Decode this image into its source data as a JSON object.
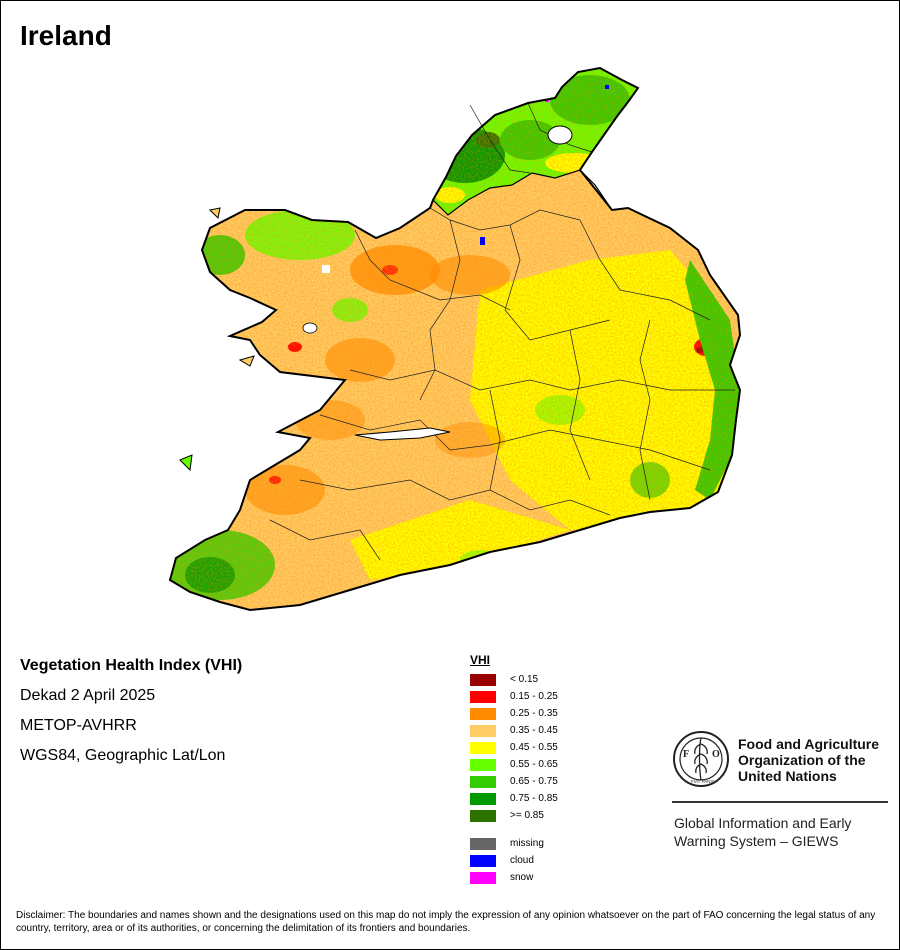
{
  "map": {
    "title": "Ireland",
    "country": "Ireland"
  },
  "info": {
    "product": "Vegetation Health Index (VHI)",
    "period": "Dekad 2 April 2025",
    "sensor": "METOP-AVHRR",
    "projection": "WGS84, Geographic Lat/Lon"
  },
  "legend": {
    "title": "VHI",
    "classes": [
      {
        "label": "< 0.15",
        "color": "#990000"
      },
      {
        "label": "0.15 - 0.25",
        "color": "#ff0000"
      },
      {
        "label": "0.25 - 0.35",
        "color": "#ff8c00"
      },
      {
        "label": "0.35 - 0.45",
        "color": "#ffcc66"
      },
      {
        "label": "0.45 - 0.55",
        "color": "#ffff00"
      },
      {
        "label": "0.55 - 0.65",
        "color": "#66ff00"
      },
      {
        "label": "0.65 - 0.75",
        "color": "#33cc00"
      },
      {
        "label": "0.75 - 0.85",
        "color": "#009900"
      },
      {
        "label": ">= 0.85",
        "color": "#2d7300"
      }
    ],
    "other": [
      {
        "label": "missing",
        "color": "#666666"
      },
      {
        "label": "cloud",
        "color": "#0000ff"
      },
      {
        "label": "snow",
        "color": "#ff00ff"
      }
    ]
  },
  "org": {
    "emblem_letters": "FAO",
    "emblem_motto": "FIAT PANIS",
    "name_line1": "Food and Agriculture",
    "name_line2": "Organization of the",
    "name_line3": "United Nations",
    "system_line1": "Global Information and Early",
    "system_line2": "Warning System – GIEWS"
  },
  "disclaimer": "Disclaimer: The boundaries and names shown and the designations used on this map do not imply the expression of any opinion whatsoever on the part of FAO concerning the legal status of any country, territory, area or of its authorities, or concerning the delimitation of its frontiers and boundaries."
}
